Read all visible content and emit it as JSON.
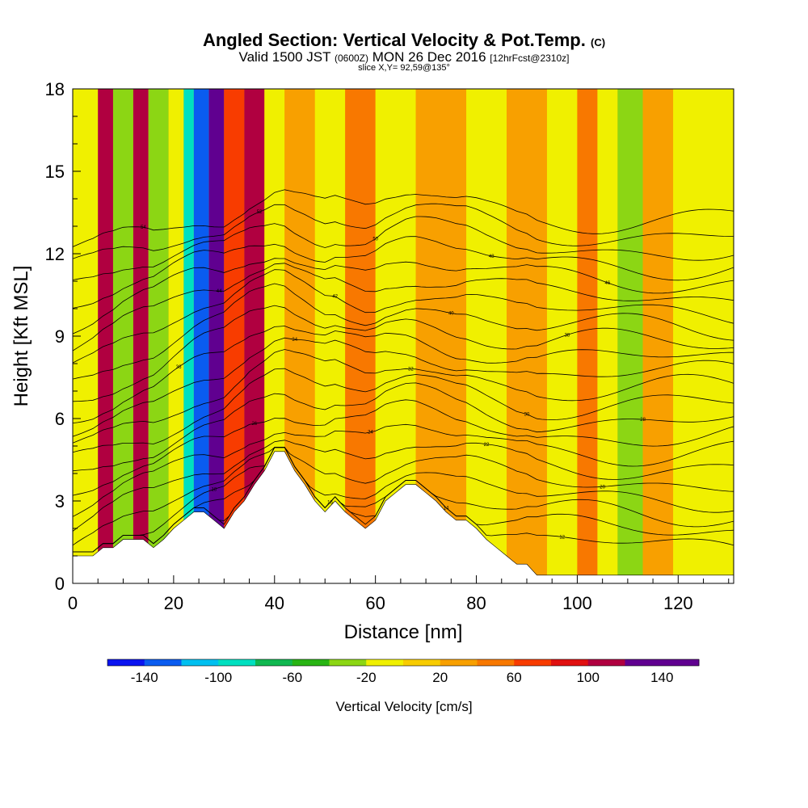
{
  "title": {
    "main": "Angled Section: Vertical Velocity & Pot.Temp.",
    "main_unit": "(C)",
    "valid_prefix": "Valid 1500 JST",
    "valid_z": "(0600Z)",
    "valid_date": "MON 26 Dec 2016",
    "fcst": "[12hrFcst@2310z]",
    "slice": "slice X,Y= 92,59@135°"
  },
  "chart_data": {
    "type": "heatmap",
    "xlabel": "Distance [nm]",
    "ylabel": "Height [Kft MSL]",
    "xlim": [
      0,
      131
    ],
    "ylim": [
      0,
      18
    ],
    "x_ticks": [
      0,
      20,
      40,
      60,
      80,
      100,
      120
    ],
    "y_ticks": [
      0,
      3,
      6,
      9,
      12,
      15,
      18
    ],
    "colorbar": {
      "label": "Vertical Velocity [cm/s]",
      "levels": [
        -160,
        -140,
        -120,
        -100,
        -80,
        -60,
        -40,
        -20,
        0,
        20,
        40,
        60,
        80,
        100,
        120,
        140,
        160
      ],
      "tick_labels": [
        -140,
        -100,
        -60,
        -20,
        20,
        60,
        100,
        140
      ],
      "colors": [
        "#0a14f0",
        "#0a5cf0",
        "#00c0f0",
        "#00e0c0",
        "#10b850",
        "#28b414",
        "#8cd614",
        "#f0f000",
        "#f8cc00",
        "#f8a000",
        "#f87800",
        "#f83c00",
        "#e01010",
        "#b00040",
        "#600090",
        "#600090"
      ]
    },
    "terrain_height_kft": [
      [
        0,
        1.0
      ],
      [
        2,
        1.0
      ],
      [
        4,
        1.0
      ],
      [
        6,
        1.3
      ],
      [
        8,
        1.3
      ],
      [
        10,
        1.6
      ],
      [
        12,
        1.6
      ],
      [
        14,
        1.6
      ],
      [
        16,
        1.3
      ],
      [
        18,
        1.6
      ],
      [
        20,
        2.0
      ],
      [
        22,
        2.3
      ],
      [
        24,
        2.6
      ],
      [
        26,
        2.6
      ],
      [
        28,
        2.3
      ],
      [
        30,
        2.0
      ],
      [
        32,
        2.6
      ],
      [
        34,
        3.0
      ],
      [
        36,
        3.6
      ],
      [
        38,
        4.1
      ],
      [
        40,
        4.8
      ],
      [
        42,
        4.8
      ],
      [
        44,
        4.1
      ],
      [
        46,
        3.6
      ],
      [
        48,
        3.0
      ],
      [
        50,
        2.6
      ],
      [
        52,
        3.0
      ],
      [
        54,
        2.6
      ],
      [
        56,
        2.3
      ],
      [
        58,
        2.0
      ],
      [
        60,
        2.3
      ],
      [
        62,
        3.0
      ],
      [
        64,
        3.3
      ],
      [
        66,
        3.6
      ],
      [
        68,
        3.6
      ],
      [
        70,
        3.3
      ],
      [
        72,
        3.0
      ],
      [
        74,
        2.6
      ],
      [
        76,
        2.3
      ],
      [
        78,
        2.3
      ],
      [
        80,
        2.0
      ],
      [
        82,
        1.6
      ],
      [
        84,
        1.3
      ],
      [
        86,
        1.0
      ],
      [
        88,
        0.7
      ],
      [
        90,
        0.7
      ],
      [
        92,
        0.3
      ],
      [
        94,
        0.3
      ],
      [
        96,
        0.3
      ],
      [
        131,
        0.3
      ]
    ],
    "velocity_bands": [
      {
        "x0": 0,
        "x1": 5,
        "value": -20
      },
      {
        "x0": 5,
        "x1": 8,
        "value": 100
      },
      {
        "x0": 8,
        "x1": 12,
        "value": -40
      },
      {
        "x0": 12,
        "x1": 15,
        "value": 100
      },
      {
        "x0": 15,
        "x1": 19,
        "value": -40
      },
      {
        "x0": 19,
        "x1": 22,
        "value": -20
      },
      {
        "x0": 22,
        "x1": 24,
        "value": -100
      },
      {
        "x0": 24,
        "x1": 27,
        "value": -140
      },
      {
        "x0": 27,
        "x1": 30,
        "value": 140
      },
      {
        "x0": 30,
        "x1": 34,
        "value": 60
      },
      {
        "x0": 34,
        "x1": 38,
        "value": 100
      },
      {
        "x0": 38,
        "x1": 42,
        "value": -20
      },
      {
        "x0": 42,
        "x1": 48,
        "value": 20
      },
      {
        "x0": 48,
        "x1": 54,
        "value": -20
      },
      {
        "x0": 54,
        "x1": 60,
        "value": 40
      },
      {
        "x0": 60,
        "x1": 68,
        "value": -20
      },
      {
        "x0": 68,
        "x1": 78,
        "value": 20
      },
      {
        "x0": 78,
        "x1": 86,
        "value": -20
      },
      {
        "x0": 86,
        "x1": 94,
        "value": 20
      },
      {
        "x0": 94,
        "x1": 100,
        "value": -20
      },
      {
        "x0": 100,
        "x1": 104,
        "value": 40
      },
      {
        "x0": 104,
        "x1": 108,
        "value": -20
      },
      {
        "x0": 108,
        "x1": 113,
        "value": -40
      },
      {
        "x0": 113,
        "x1": 119,
        "value": 20
      },
      {
        "x0": 119,
        "x1": 131,
        "value": -20
      }
    ],
    "isentrope_count": 22,
    "isentrope_labels": [
      "54",
      "52",
      "50",
      "48",
      "46",
      "44",
      "42",
      "40",
      "38",
      "36",
      "34",
      "32",
      "30",
      "28",
      "26",
      "24",
      "22",
      "20",
      "18",
      "16",
      "14",
      "12"
    ]
  }
}
